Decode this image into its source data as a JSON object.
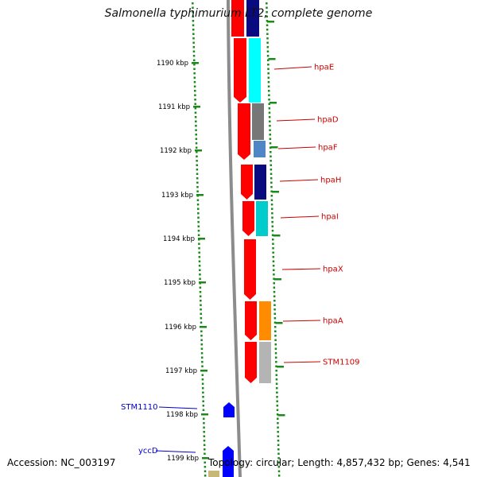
{
  "title": "Salmonella typhimurium LT2, complete genome",
  "accession": "Accession: NC_003197",
  "summary": "Topology: circular; Length: 4,857,432 bp; Genes: 4,541",
  "colors": {
    "ruler_dots": "#1a8a1a",
    "backbone": "#8c8c8c",
    "forward_genes": "#ff0000",
    "reverse_genes": "#0000ff",
    "right_label": "#cc0000",
    "left_label": "#0000cc"
  },
  "ruler_labels": [
    "1190 kbp",
    "1191 kbp",
    "1192 kbp",
    "1193 kbp",
    "1194 kbp",
    "1195 kbp",
    "1196 kbp",
    "1197 kbp",
    "1198 kbp",
    "1199 kbp"
  ],
  "right_genes": [
    {
      "label": "hpaE",
      "color": "#00ffff"
    },
    {
      "label": "hpaD",
      "color": "#777777"
    },
    {
      "label": "hpaF",
      "color": "#4f86c6"
    },
    {
      "label": "hpaH",
      "color": "#0a0a80"
    },
    {
      "label": "hpaI",
      "color": "#00cccc"
    },
    {
      "label": "hpaX",
      "color": ""
    },
    {
      "label": "hpaA",
      "color": "#ff8c00"
    },
    {
      "label": "STM1109",
      "color": "#b4b4b4"
    }
  ],
  "left_genes": [
    {
      "label": "STM1110"
    },
    {
      "label": "yccD"
    }
  ]
}
